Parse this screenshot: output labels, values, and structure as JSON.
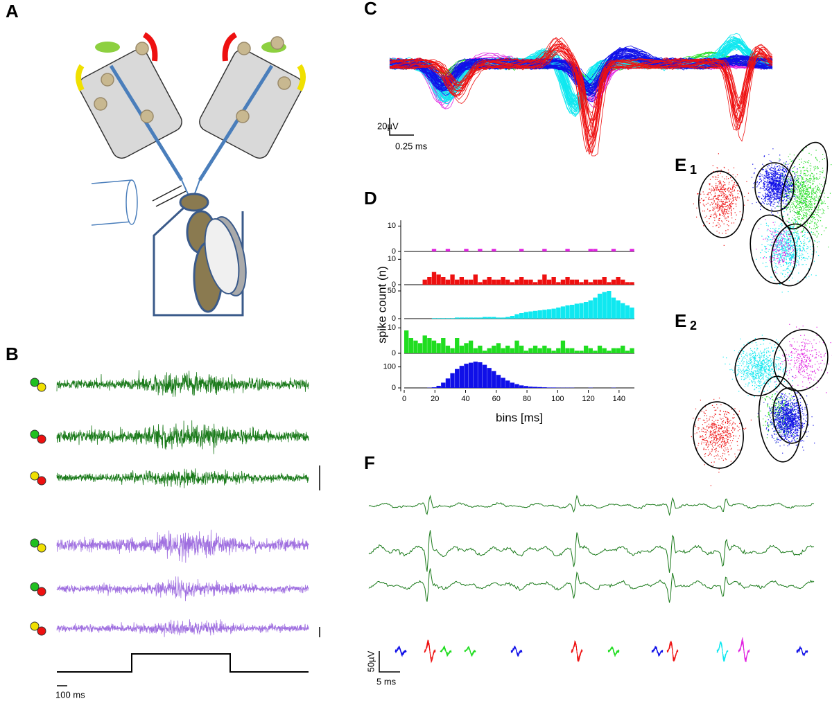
{
  "panel_labels": {
    "a": "A",
    "b": "B",
    "c": "C",
    "d": "D",
    "e1": "E",
    "e1_sub": "1",
    "e2": "E",
    "e2_sub": "2",
    "f": "F"
  },
  "scale_bars": {
    "c_voltage": "20µV",
    "c_time": "0.25 ms",
    "b_time": "100 ms",
    "f_voltage": "50µV",
    "f_time": "5 ms"
  },
  "chart_data": {
    "type": "histogram",
    "xlabel": "bins [ms]",
    "ylabel": "spike count (n)",
    "xlim": [
      0,
      150
    ],
    "xticks": [
      0,
      20,
      40,
      60,
      80,
      100,
      120,
      140
    ],
    "bins": [
      0,
      3,
      6,
      9,
      12,
      15,
      18,
      21,
      24,
      27,
      30,
      33,
      36,
      39,
      42,
      45,
      48,
      51,
      54,
      57,
      60,
      63,
      66,
      69,
      72,
      75,
      78,
      81,
      84,
      87,
      90,
      93,
      96,
      99,
      102,
      105,
      108,
      111,
      114,
      117,
      120,
      123,
      126,
      129,
      132,
      135,
      138,
      141,
      144,
      147,
      150
    ],
    "series": [
      {
        "color": "#e020e0",
        "ylim": [
          0,
          12
        ],
        "yticks": [
          0,
          10
        ],
        "values": [
          0,
          0,
          0,
          0,
          0,
          0,
          1,
          0,
          0,
          1,
          0,
          0,
          0,
          1,
          0,
          0,
          1,
          0,
          0,
          1,
          0,
          0,
          0,
          0,
          0,
          1,
          0,
          0,
          0,
          0,
          1,
          0,
          0,
          0,
          0,
          1,
          0,
          0,
          0,
          0,
          1,
          1,
          0,
          0,
          0,
          1,
          0,
          0,
          0,
          1
        ]
      },
      {
        "color": "#ee1010",
        "ylim": [
          0,
          12
        ],
        "yticks": [
          0,
          10
        ],
        "values": [
          0,
          0,
          0,
          0,
          2,
          3,
          5,
          4,
          3,
          2,
          4,
          2,
          3,
          2,
          2,
          4,
          1,
          2,
          3,
          2,
          2,
          3,
          2,
          1,
          2,
          3,
          2,
          2,
          1,
          2,
          4,
          2,
          3,
          1,
          2,
          3,
          2,
          2,
          1,
          2,
          1,
          2,
          2,
          3,
          1,
          2,
          3,
          2,
          1,
          1
        ]
      },
      {
        "color": "#10e8f0",
        "ylim": [
          0,
          55
        ],
        "yticks": [
          0,
          50
        ],
        "values": [
          0,
          0,
          0,
          0,
          0,
          0,
          1,
          1,
          1,
          1,
          1,
          2,
          2,
          2,
          2,
          2,
          2,
          3,
          3,
          3,
          2,
          2,
          3,
          5,
          8,
          10,
          12,
          13,
          14,
          15,
          16,
          17,
          18,
          20,
          22,
          24,
          25,
          27,
          28,
          30,
          33,
          38,
          45,
          48,
          50,
          38,
          33,
          28,
          24,
          20
        ]
      },
      {
        "color": "#20dd20",
        "ylim": [
          0,
          12
        ],
        "yticks": [
          0,
          10
        ],
        "values": [
          9,
          6,
          5,
          4,
          7,
          6,
          5,
          4,
          6,
          3,
          2,
          6,
          3,
          4,
          5,
          2,
          3,
          1,
          2,
          3,
          4,
          2,
          3,
          2,
          5,
          3,
          1,
          2,
          3,
          2,
          3,
          2,
          1,
          2,
          5,
          2,
          2,
          1,
          1,
          3,
          2,
          1,
          3,
          2,
          1,
          2,
          2,
          3,
          1,
          2
        ]
      },
      {
        "color": "#1010e8",
        "ylim": [
          0,
          145
        ],
        "yticks": [
          0,
          100
        ],
        "values": [
          0,
          0,
          0,
          0,
          0,
          1,
          3,
          10,
          25,
          45,
          70,
          90,
          105,
          115,
          120,
          125,
          122,
          110,
          95,
          80,
          62,
          48,
          35,
          25,
          18,
          12,
          9,
          6,
          5,
          4,
          3,
          2,
          2,
          1,
          1,
          1,
          1,
          0,
          0,
          0,
          1,
          0,
          0,
          0,
          0,
          1,
          0,
          0,
          0,
          0
        ]
      }
    ]
  }
}
